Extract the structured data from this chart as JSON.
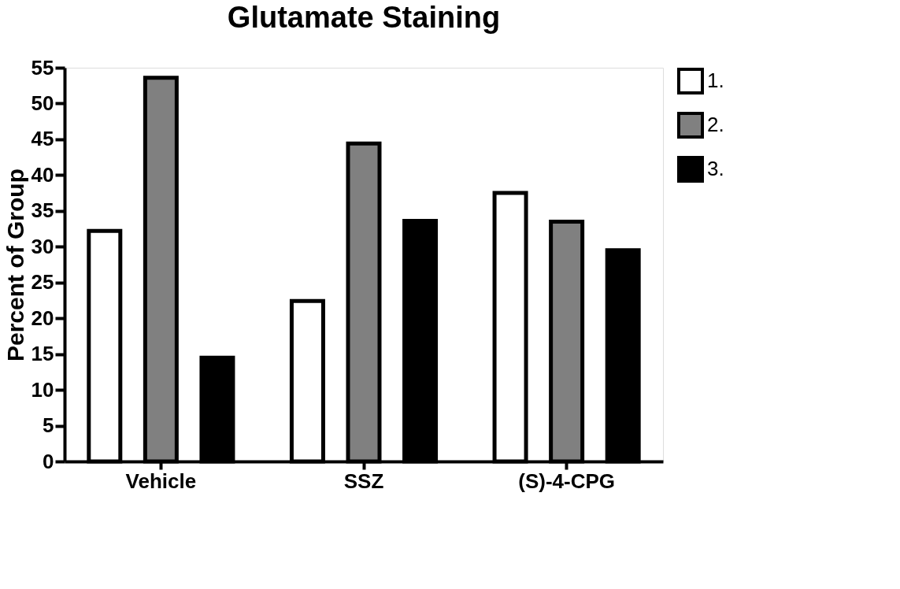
{
  "chart_data": {
    "type": "bar",
    "title": "Glutamate Staining",
    "ylabel": "Percent of Group",
    "categories": [
      "Vehicle",
      "SSZ",
      "(S)-4-CPG"
    ],
    "series": [
      {
        "name": "1.",
        "color": "#ffffff",
        "values": [
          32.2,
          22.4,
          37.5
        ]
      },
      {
        "name": "2.",
        "color": "#808080",
        "values": [
          53.6,
          44.4,
          33.5
        ]
      },
      {
        "name": "3.",
        "color": "#000000",
        "values": [
          14.5,
          33.6,
          29.5
        ]
      }
    ],
    "ylim": [
      0,
      55
    ],
    "yticks": [
      0,
      5,
      10,
      15,
      20,
      25,
      30,
      35,
      40,
      45,
      50,
      55
    ],
    "grid": false,
    "legend": "top right"
  }
}
